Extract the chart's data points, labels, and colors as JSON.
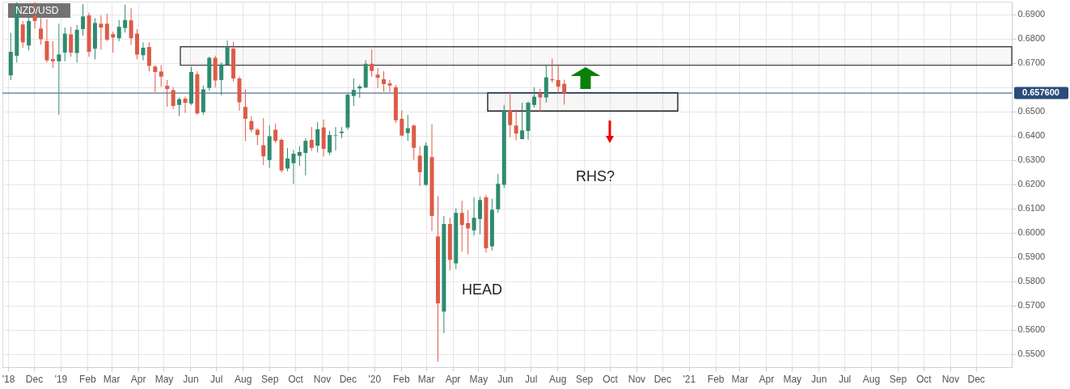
{
  "chart_data": {
    "type": "candlestick",
    "title": "NZD/USD",
    "x": [
      "2018-11-04",
      "2018-11-11",
      "2018-11-18",
      "2018-11-25",
      "2018-12-02",
      "2018-12-09",
      "2018-12-16",
      "2018-12-23",
      "2018-12-30",
      "2019-01-06",
      "2019-01-13",
      "2019-01-20",
      "2019-01-27",
      "2019-02-03",
      "2019-02-10",
      "2019-02-17",
      "2019-02-24",
      "2019-03-03",
      "2019-03-10",
      "2019-03-17",
      "2019-03-24",
      "2019-03-31",
      "2019-04-07",
      "2019-04-14",
      "2019-04-21",
      "2019-04-28",
      "2019-05-05",
      "2019-05-12",
      "2019-05-19",
      "2019-05-26",
      "2019-06-02",
      "2019-06-09",
      "2019-06-16",
      "2019-06-23",
      "2019-06-30",
      "2019-07-07",
      "2019-07-14",
      "2019-07-21",
      "2019-07-28",
      "2019-08-04",
      "2019-08-11",
      "2019-08-18",
      "2019-08-25",
      "2019-09-01",
      "2019-09-08",
      "2019-09-15",
      "2019-09-22",
      "2019-09-29",
      "2019-10-06",
      "2019-10-13",
      "2019-10-20",
      "2019-10-27",
      "2019-11-03",
      "2019-11-10",
      "2019-11-17",
      "2019-11-24",
      "2019-12-01",
      "2019-12-08",
      "2019-12-15",
      "2019-12-22",
      "2019-12-29",
      "2020-01-05",
      "2020-01-12",
      "2020-01-19",
      "2020-01-26",
      "2020-02-02",
      "2020-02-09",
      "2020-02-16",
      "2020-02-23",
      "2020-03-01",
      "2020-03-08",
      "2020-03-15",
      "2020-03-22",
      "2020-03-29",
      "2020-04-05",
      "2020-04-12",
      "2020-04-19",
      "2020-04-26",
      "2020-05-03",
      "2020-05-10",
      "2020-05-17",
      "2020-05-24",
      "2020-05-31",
      "2020-06-07",
      "2020-06-14",
      "2020-06-21",
      "2020-06-28",
      "2020-07-05",
      "2020-07-12",
      "2020-07-19",
      "2020-07-26",
      "2020-08-02",
      "2020-08-09"
    ],
    "ohlc": [
      [
        0.6649,
        0.6824,
        0.663,
        0.6746
      ],
      [
        0.673,
        0.695,
        0.6702,
        0.694
      ],
      [
        0.6859,
        0.6873,
        0.6763,
        0.6785
      ],
      [
        0.6772,
        0.689,
        0.6752,
        0.6873
      ],
      [
        0.6895,
        0.695,
        0.6842,
        0.6873
      ],
      [
        0.6842,
        0.6885,
        0.6776,
        0.6798
      ],
      [
        0.679,
        0.6881,
        0.6702,
        0.6711
      ],
      [
        0.6716,
        0.679,
        0.668,
        0.6707
      ],
      [
        0.6707,
        0.6862,
        0.6486,
        0.6735
      ],
      [
        0.6743,
        0.6846,
        0.6707,
        0.6821
      ],
      [
        0.6818,
        0.6849,
        0.6726,
        0.6743
      ],
      [
        0.6741,
        0.6857,
        0.6702,
        0.6837
      ],
      [
        0.684,
        0.6943,
        0.6813,
        0.6892
      ],
      [
        0.6896,
        0.6907,
        0.6726,
        0.6746
      ],
      [
        0.6759,
        0.6885,
        0.6715,
        0.6865
      ],
      [
        0.6862,
        0.6896,
        0.6755,
        0.6846
      ],
      [
        0.6862,
        0.6903,
        0.679,
        0.6796
      ],
      [
        0.6819,
        0.6829,
        0.6743,
        0.6805
      ],
      [
        0.6802,
        0.6877,
        0.679,
        0.6849
      ],
      [
        0.6844,
        0.694,
        0.6826,
        0.6877
      ],
      [
        0.6876,
        0.6925,
        0.6774,
        0.6802
      ],
      [
        0.6821,
        0.684,
        0.6715,
        0.6735
      ],
      [
        0.6732,
        0.6785,
        0.6711,
        0.6763
      ],
      [
        0.6766,
        0.6785,
        0.6665,
        0.6688
      ],
      [
        0.6685,
        0.6691,
        0.658,
        0.6663
      ],
      [
        0.6665,
        0.6691,
        0.6602,
        0.6644
      ],
      [
        0.6606,
        0.663,
        0.6519,
        0.6593
      ],
      [
        0.6588,
        0.66,
        0.651,
        0.6523
      ],
      [
        0.6527,
        0.6558,
        0.6481,
        0.6551
      ],
      [
        0.6553,
        0.6561,
        0.6494,
        0.6536
      ],
      [
        0.6533,
        0.6685,
        0.6527,
        0.6663
      ],
      [
        0.6654,
        0.6666,
        0.6486,
        0.6492
      ],
      [
        0.6497,
        0.6608,
        0.6486,
        0.6591
      ],
      [
        0.6597,
        0.6726,
        0.6586,
        0.6721
      ],
      [
        0.6721,
        0.673,
        0.66,
        0.6628
      ],
      [
        0.663,
        0.6702,
        0.6567,
        0.6694
      ],
      [
        0.6693,
        0.6793,
        0.6691,
        0.6765
      ],
      [
        0.6759,
        0.6787,
        0.6624,
        0.6636
      ],
      [
        0.6636,
        0.6644,
        0.6503,
        0.6538
      ],
      [
        0.6519,
        0.6591,
        0.6378,
        0.647
      ],
      [
        0.6461,
        0.6481,
        0.6414,
        0.6425
      ],
      [
        0.6425,
        0.6431,
        0.6361,
        0.6403
      ],
      [
        0.6361,
        0.6472,
        0.6279,
        0.6315
      ],
      [
        0.63,
        0.6444,
        0.6268,
        0.6398
      ],
      [
        0.6425,
        0.645,
        0.637,
        0.6379
      ],
      [
        0.6383,
        0.639,
        0.6248,
        0.6257
      ],
      [
        0.6265,
        0.635,
        0.6254,
        0.6306
      ],
      [
        0.6287,
        0.6342,
        0.6202,
        0.6326
      ],
      [
        0.6317,
        0.6357,
        0.6276,
        0.6333
      ],
      [
        0.6329,
        0.639,
        0.6237,
        0.6379
      ],
      [
        0.6383,
        0.6436,
        0.6337,
        0.635
      ],
      [
        0.6359,
        0.6456,
        0.6331,
        0.6427
      ],
      [
        0.6434,
        0.6467,
        0.6315,
        0.6346
      ],
      [
        0.6331,
        0.642,
        0.632,
        0.6403
      ],
      [
        0.6401,
        0.6436,
        0.6339,
        0.6403
      ],
      [
        0.6411,
        0.6436,
        0.639,
        0.6417
      ],
      [
        0.6434,
        0.6575,
        0.6425,
        0.6569
      ],
      [
        0.6564,
        0.6636,
        0.6523,
        0.6589
      ],
      [
        0.6595,
        0.6611,
        0.6556,
        0.6603
      ],
      [
        0.6599,
        0.6711,
        0.6597,
        0.6696
      ],
      [
        0.6696,
        0.6755,
        0.6643,
        0.6667
      ],
      [
        0.6652,
        0.668,
        0.6597,
        0.6639
      ],
      [
        0.6633,
        0.6666,
        0.6582,
        0.6613
      ],
      [
        0.6616,
        0.663,
        0.658,
        0.6607
      ],
      [
        0.66,
        0.661,
        0.6453,
        0.6464
      ],
      [
        0.647,
        0.6505,
        0.6398,
        0.6401
      ],
      [
        0.6411,
        0.6486,
        0.6379,
        0.6431
      ],
      [
        0.6442,
        0.6447,
        0.6301,
        0.635
      ],
      [
        0.6318,
        0.6357,
        0.6193,
        0.625
      ],
      [
        0.6198,
        0.6372,
        0.6193,
        0.6359
      ],
      [
        0.6312,
        0.6447,
        0.6007,
        0.6069
      ],
      [
        0.5985,
        0.6151,
        0.5468,
        0.5709
      ],
      [
        0.5675,
        0.6069,
        0.5586,
        0.6036
      ],
      [
        0.6036,
        0.6062,
        0.5844,
        0.5888
      ],
      [
        0.5874,
        0.6101,
        0.585,
        0.6082
      ],
      [
        0.6082,
        0.6132,
        0.5922,
        0.6032
      ],
      [
        0.604,
        0.6093,
        0.5911,
        0.6018
      ],
      [
        0.601,
        0.6146,
        0.5988,
        0.6062
      ],
      [
        0.6057,
        0.6149,
        0.5994,
        0.6135
      ],
      [
        0.6146,
        0.6156,
        0.5918,
        0.5936
      ],
      [
        0.5944,
        0.614,
        0.5927,
        0.6095
      ],
      [
        0.6097,
        0.6243,
        0.6082,
        0.6202
      ],
      [
        0.6198,
        0.6527,
        0.6185,
        0.6505
      ],
      [
        0.6505,
        0.6582,
        0.6394,
        0.6444
      ],
      [
        0.6442,
        0.6508,
        0.6381,
        0.6409
      ],
      [
        0.6386,
        0.6536,
        0.6386,
        0.6422
      ],
      [
        0.642,
        0.6541,
        0.6384,
        0.6536
      ],
      [
        0.6527,
        0.66,
        0.6517,
        0.6561
      ],
      [
        0.6575,
        0.6593,
        0.65,
        0.6558
      ],
      [
        0.6558,
        0.6691,
        0.6536,
        0.6641
      ],
      [
        0.6633,
        0.6718,
        0.6619,
        0.6629
      ],
      [
        0.663,
        0.6691,
        0.6575,
        0.6602
      ],
      [
        0.6614,
        0.6631,
        0.6528,
        0.6576
      ]
    ],
    "colors": [
      "#2e8b6f",
      "#2e8b6f",
      "#dd5b47",
      "#2e8b6f",
      "#dd5b47",
      "#dd5b47",
      "#dd5b47",
      "#dd5b47",
      "#2e8b6f",
      "#2e8b6f",
      "#dd5b47",
      "#2e8b6f",
      "#2e8b6f",
      "#dd5b47",
      "#2e8b6f",
      "#dd5b47",
      "#dd5b47",
      "#dd5b47",
      "#2e8b6f",
      "#2e8b6f",
      "#dd5b47",
      "#dd5b47",
      "#2e8b6f",
      "#dd5b47",
      "#dd5b47",
      "#dd5b47",
      "#dd5b47",
      "#dd5b47",
      "#2e8b6f",
      "#dd5b47",
      "#2e8b6f",
      "#dd5b47",
      "#2e8b6f",
      "#2e8b6f",
      "#dd5b47",
      "#2e8b6f",
      "#2e8b6f",
      "#dd5b47",
      "#dd5b47",
      "#dd5b47",
      "#dd5b47",
      "#dd5b47",
      "#dd5b47",
      "#2e8b6f",
      "#dd5b47",
      "#dd5b47",
      "#2e8b6f",
      "#2e8b6f",
      "#2e8b6f",
      "#2e8b6f",
      "#dd5b47",
      "#2e8b6f",
      "#dd5b47",
      "#2e8b6f",
      "#2e8b6f",
      "#2e8b6f",
      "#2e8b6f",
      "#2e8b6f",
      "#2e8b6f",
      "#2e8b6f",
      "#dd5b47",
      "#dd5b47",
      "#dd5b47",
      "#dd5b47",
      "#dd5b47",
      "#dd5b47",
      "#2e8b6f",
      "#dd5b47",
      "#dd5b47",
      "#2e8b6f",
      "#dd5b47",
      "#dd5b47",
      "#2e8b6f",
      "#dd5b47",
      "#2e8b6f",
      "#dd5b47",
      "#dd5b47",
      "#2e8b6f",
      "#2e8b6f",
      "#dd5b47",
      "#2e8b6f",
      "#2e8b6f",
      "#2e8b6f",
      "#dd5b47",
      "#dd5b47",
      "#2e8b6f",
      "#2e8b6f",
      "#2e8b6f",
      "#dd5b47",
      "#2e8b6f",
      "#dd5b47",
      "#dd5b47",
      "#dd5b47"
    ],
    "xlim": [
      "2018-10-30",
      "2022-01-07"
    ],
    "ylim": [
      0.5446,
      0.6953
    ],
    "xticks": [
      {
        "value": "2018-11-01",
        "label": "'18"
      },
      {
        "value": "2018-12-01",
        "label": "Dec"
      },
      {
        "value": "2019-01-01",
        "label": "'19"
      },
      {
        "value": "2019-02-01",
        "label": "Feb"
      },
      {
        "value": "2019-03-01",
        "label": "Mar"
      },
      {
        "value": "2019-04-01",
        "label": "Apr"
      },
      {
        "value": "2019-05-01",
        "label": "May"
      },
      {
        "value": "2019-06-01",
        "label": "Jun"
      },
      {
        "value": "2019-07-01",
        "label": "Jul"
      },
      {
        "value": "2019-08-01",
        "label": "Aug"
      },
      {
        "value": "2019-09-01",
        "label": "Sep"
      },
      {
        "value": "2019-10-01",
        "label": "Oct"
      },
      {
        "value": "2019-11-01",
        "label": "Nov"
      },
      {
        "value": "2019-12-01",
        "label": "Dec"
      },
      {
        "value": "2020-01-01",
        "label": "'20"
      },
      {
        "value": "2020-02-01",
        "label": "Feb"
      },
      {
        "value": "2020-03-01",
        "label": "Mar"
      },
      {
        "value": "2020-04-01",
        "label": "Apr"
      },
      {
        "value": "2020-05-01",
        "label": "May"
      },
      {
        "value": "2020-06-01",
        "label": "Jun"
      },
      {
        "value": "2020-07-01",
        "label": "Jul"
      },
      {
        "value": "2020-08-01",
        "label": "Aug"
      },
      {
        "value": "2020-09-01",
        "label": "Sep"
      },
      {
        "value": "2020-10-01",
        "label": "Oct"
      },
      {
        "value": "2020-11-01",
        "label": "Nov"
      },
      {
        "value": "2020-12-01",
        "label": "Dec"
      },
      {
        "value": "2021-01-01",
        "label": "'21"
      },
      {
        "value": "2021-02-01",
        "label": "Feb"
      },
      {
        "value": "2021-03-01",
        "label": "Mar"
      },
      {
        "value": "2021-04-01",
        "label": "Apr"
      },
      {
        "value": "2021-05-01",
        "label": "May"
      },
      {
        "value": "2021-06-01",
        "label": "Jun"
      },
      {
        "value": "2021-07-01",
        "label": "Jul"
      },
      {
        "value": "2021-08-01",
        "label": "Aug"
      },
      {
        "value": "2021-09-01",
        "label": "Sep"
      },
      {
        "value": "2021-10-01",
        "label": "Oct"
      },
      {
        "value": "2021-11-01",
        "label": "Nov"
      },
      {
        "value": "2021-12-01",
        "label": "Dec"
      }
    ],
    "yticks": [
      {
        "value": 0.55,
        "label": "0.5500"
      },
      {
        "value": 0.56,
        "label": "0.5600"
      },
      {
        "value": 0.57,
        "label": "0.5700"
      },
      {
        "value": 0.58,
        "label": "0.5800"
      },
      {
        "value": 0.59,
        "label": "0.5900"
      },
      {
        "value": 0.6,
        "label": "0.6000"
      },
      {
        "value": 0.61,
        "label": "0.6100"
      },
      {
        "value": 0.62,
        "label": "0.6200"
      },
      {
        "value": 0.63,
        "label": "0.6300"
      },
      {
        "value": 0.64,
        "label": "0.6400"
      },
      {
        "value": 0.65,
        "label": "0.6500"
      },
      {
        "value": 0.66,
        "label": null
      },
      {
        "value": 0.67,
        "label": "0.6700"
      },
      {
        "value": 0.68,
        "label": "0.6800"
      },
      {
        "value": 0.69,
        "label": "0.6900"
      }
    ],
    "grid": true,
    "ref_lines": [
      {
        "axis": "y",
        "value": 0.6576,
        "label": "0.657600",
        "color": "#2a4b7c"
      }
    ],
    "bands": [
      {
        "axis": "y",
        "from": 0.6691,
        "to": 0.6767,
        "color": "#444444"
      },
      {
        "axis": "y",
        "from": 0.6502,
        "to": 0.6577,
        "color": "#222222"
      }
    ],
    "annotations": [
      "HEAD",
      "RHS?"
    ]
  }
}
